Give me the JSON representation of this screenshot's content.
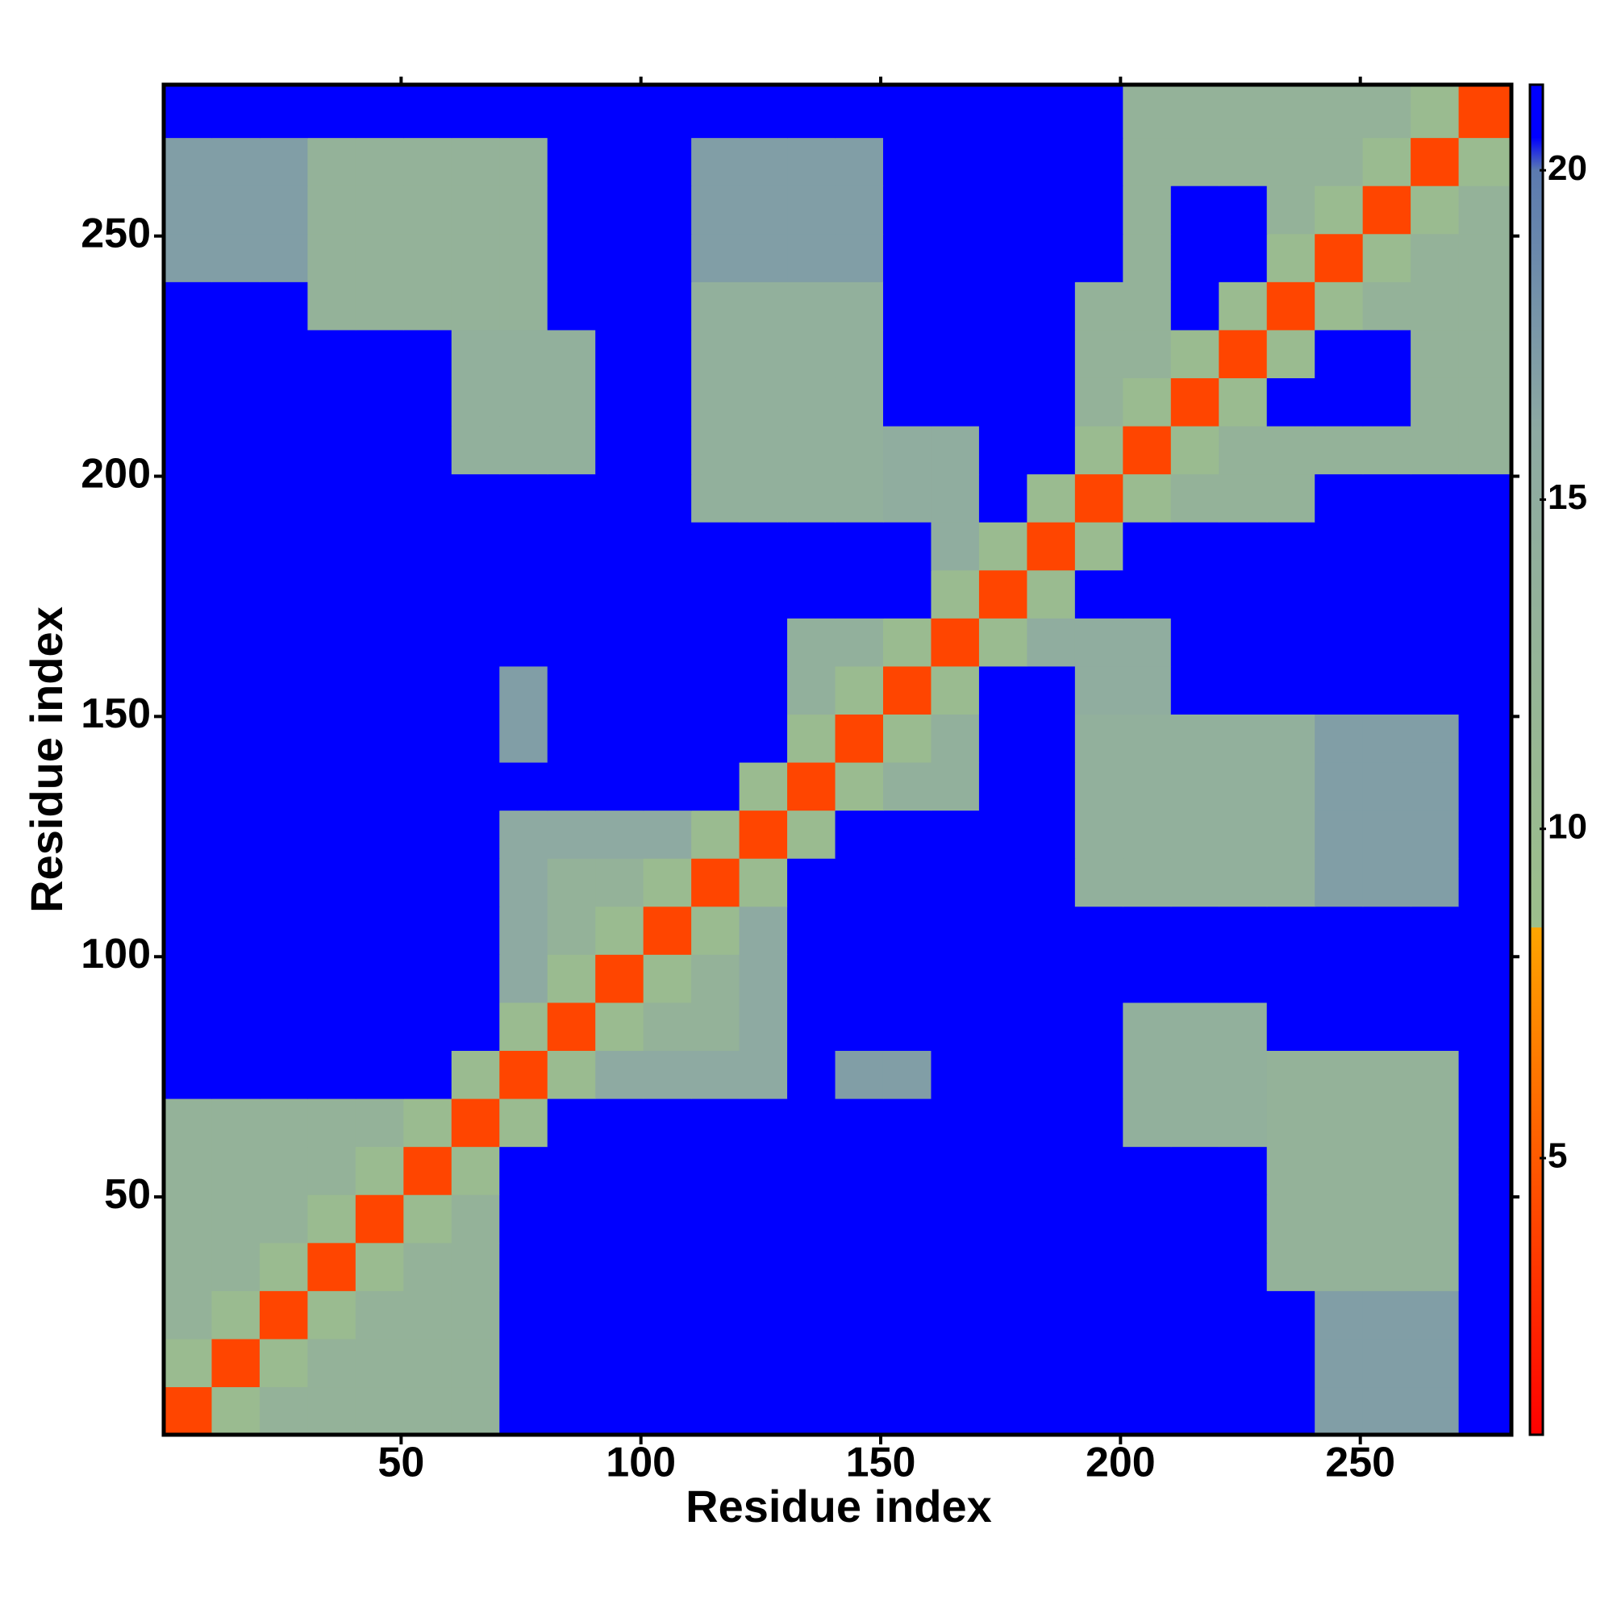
{
  "chart_data": {
    "type": "heatmap",
    "xlabel": "Residue index",
    "ylabel": "Residue index",
    "xbins": [
      0.5,
      10.5,
      20.5,
      30.5,
      40.5,
      50.5,
      60.5,
      70.5,
      80.5,
      90.5,
      100.5,
      110.5,
      120.5,
      130.5,
      140.5,
      150.5,
      160.5,
      170.5,
      180.5,
      190.5,
      200.5,
      210.5,
      220.5,
      230.5,
      240.5,
      250.5,
      260.5,
      270.5,
      281.5
    ],
    "ybins": [
      0.5,
      10.5,
      20.5,
      30.5,
      40.5,
      50.5,
      60.5,
      70.5,
      80.5,
      90.5,
      100.5,
      110.5,
      120.5,
      130.5,
      140.5,
      150.5,
      160.5,
      170.5,
      180.5,
      190.5,
      200.5,
      210.5,
      220.5,
      230.5,
      240.5,
      250.5,
      260.5,
      270.5,
      281.5
    ],
    "z": [
      [
        4,
        10,
        13,
        13,
        13,
        13,
        13,
        21,
        21,
        21,
        21,
        21,
        21,
        21,
        21,
        21,
        21,
        21,
        21,
        21,
        21,
        21,
        21,
        21,
        17,
        17,
        17,
        21
      ],
      [
        10,
        4,
        10,
        13,
        13,
        13,
        13,
        21,
        21,
        21,
        21,
        21,
        21,
        21,
        21,
        21,
        21,
        21,
        21,
        21,
        21,
        21,
        21,
        21,
        17,
        17,
        17,
        21
      ],
      [
        13,
        10,
        4,
        10,
        13,
        13,
        13,
        21,
        21,
        21,
        21,
        21,
        21,
        21,
        21,
        21,
        21,
        21,
        21,
        21,
        21,
        21,
        21,
        21,
        17,
        17,
        17,
        21
      ],
      [
        13,
        13,
        10,
        4,
        10,
        13,
        13,
        21,
        21,
        21,
        21,
        21,
        21,
        21,
        21,
        21,
        21,
        21,
        21,
        21,
        21,
        21,
        21,
        13,
        13,
        13,
        13,
        21
      ],
      [
        13,
        13,
        13,
        10,
        4,
        10,
        13,
        21,
        21,
        21,
        21,
        21,
        21,
        21,
        21,
        21,
        21,
        21,
        21,
        21,
        21,
        21,
        21,
        13,
        13,
        13,
        13,
        21
      ],
      [
        13,
        13,
        13,
        13,
        10,
        4,
        10,
        21,
        21,
        21,
        21,
        21,
        21,
        21,
        21,
        21,
        21,
        21,
        21,
        21,
        21,
        21,
        21,
        13,
        13,
        13,
        13,
        21
      ],
      [
        13,
        13,
        13,
        13,
        13,
        10,
        4,
        10,
        21,
        21,
        21,
        21,
        21,
        21,
        21,
        21,
        21,
        21,
        21,
        21,
        14,
        14,
        14,
        13,
        13,
        13,
        13,
        21
      ],
      [
        21,
        21,
        21,
        21,
        21,
        21,
        10,
        4,
        10,
        16,
        16,
        16,
        16,
        21,
        17,
        17,
        21,
        21,
        21,
        21,
        14,
        14,
        14,
        13,
        13,
        13,
        13,
        21
      ],
      [
        21,
        21,
        21,
        21,
        21,
        21,
        21,
        10,
        4,
        10,
        13,
        13,
        16,
        21,
        21,
        21,
        21,
        21,
        21,
        21,
        14,
        14,
        14,
        21,
        21,
        21,
        21,
        21
      ],
      [
        21,
        21,
        21,
        21,
        21,
        21,
        21,
        16,
        10,
        4,
        10,
        13,
        16,
        21,
        21,
        21,
        21,
        21,
        21,
        21,
        21,
        21,
        21,
        21,
        21,
        21,
        21,
        21
      ],
      [
        21,
        21,
        21,
        21,
        21,
        21,
        21,
        16,
        13,
        10,
        4,
        10,
        16,
        21,
        21,
        21,
        21,
        21,
        21,
        21,
        21,
        21,
        21,
        21,
        21,
        21,
        21,
        21
      ],
      [
        21,
        21,
        21,
        21,
        21,
        21,
        21,
        16,
        13,
        13,
        10,
        4,
        10,
        21,
        21,
        21,
        21,
        21,
        21,
        14,
        14,
        14,
        14,
        14,
        17,
        17,
        17,
        21
      ],
      [
        21,
        21,
        21,
        21,
        21,
        21,
        21,
        16,
        16,
        16,
        16,
        10,
        4,
        10,
        21,
        21,
        21,
        21,
        21,
        14,
        14,
        14,
        14,
        14,
        17,
        17,
        17,
        21
      ],
      [
        21,
        21,
        21,
        21,
        21,
        21,
        21,
        21,
        21,
        21,
        21,
        21,
        10,
        4,
        10,
        14,
        14,
        21,
        21,
        14,
        14,
        14,
        14,
        14,
        17,
        17,
        17,
        21
      ],
      [
        21,
        21,
        21,
        21,
        21,
        21,
        21,
        17,
        21,
        21,
        21,
        21,
        21,
        10,
        4,
        10,
        14,
        21,
        21,
        14,
        14,
        14,
        14,
        14,
        17,
        17,
        17,
        21
      ],
      [
        21,
        21,
        21,
        21,
        21,
        21,
        21,
        17,
        21,
        21,
        21,
        21,
        21,
        14,
        10,
        4,
        10,
        21,
        21,
        15,
        15,
        21,
        21,
        21,
        21,
        21,
        21,
        21
      ],
      [
        21,
        21,
        21,
        21,
        21,
        21,
        21,
        21,
        21,
        21,
        21,
        21,
        21,
        14,
        14,
        10,
        4,
        10,
        15,
        15,
        15,
        21,
        21,
        21,
        21,
        21,
        21,
        21
      ],
      [
        21,
        21,
        21,
        21,
        21,
        21,
        21,
        21,
        21,
        21,
        21,
        21,
        21,
        21,
        21,
        21,
        10,
        4,
        10,
        21,
        21,
        21,
        21,
        21,
        21,
        21,
        21,
        21
      ],
      [
        21,
        21,
        21,
        21,
        21,
        21,
        21,
        21,
        21,
        21,
        21,
        21,
        21,
        21,
        21,
        21,
        15,
        10,
        4,
        10,
        21,
        21,
        21,
        21,
        21,
        21,
        21,
        21
      ],
      [
        21,
        21,
        21,
        21,
        21,
        21,
        21,
        21,
        21,
        21,
        21,
        14,
        14,
        14,
        14,
        15,
        15,
        21,
        10,
        4,
        10,
        13,
        13,
        13,
        21,
        21,
        21,
        21
      ],
      [
        21,
        21,
        21,
        21,
        21,
        21,
        14,
        14,
        14,
        21,
        21,
        14,
        14,
        14,
        14,
        15,
        15,
        21,
        21,
        10,
        4,
        10,
        13,
        13,
        13,
        13,
        13,
        13
      ],
      [
        21,
        21,
        21,
        21,
        21,
        21,
        14,
        14,
        14,
        21,
        21,
        14,
        14,
        14,
        14,
        21,
        21,
        21,
        21,
        13,
        10,
        4,
        10,
        21,
        21,
        21,
        13,
        13
      ],
      [
        21,
        21,
        21,
        21,
        21,
        21,
        14,
        14,
        14,
        21,
        21,
        14,
        14,
        14,
        14,
        21,
        21,
        21,
        21,
        13,
        13,
        10,
        4,
        10,
        21,
        21,
        13,
        13
      ],
      [
        21,
        21,
        21,
        13,
        13,
        13,
        13,
        13,
        21,
        21,
        21,
        14,
        14,
        14,
        14,
        21,
        21,
        21,
        21,
        13,
        13,
        21,
        10,
        4,
        10,
        13,
        13,
        13
      ],
      [
        17,
        17,
        17,
        13,
        13,
        13,
        13,
        13,
        21,
        21,
        21,
        17,
        17,
        17,
        17,
        21,
        21,
        21,
        21,
        21,
        13,
        21,
        21,
        10,
        4,
        10,
        13,
        13
      ],
      [
        17,
        17,
        17,
        13,
        13,
        13,
        13,
        13,
        21,
        21,
        21,
        17,
        17,
        17,
        17,
        21,
        21,
        21,
        21,
        21,
        13,
        21,
        21,
        13,
        10,
        4,
        10,
        13
      ],
      [
        17,
        17,
        17,
        13,
        13,
        13,
        13,
        13,
        21,
        21,
        21,
        17,
        17,
        17,
        17,
        21,
        21,
        21,
        21,
        21,
        13,
        13,
        13,
        13,
        13,
        10,
        4,
        10
      ],
      [
        21,
        21,
        21,
        21,
        21,
        21,
        21,
        21,
        21,
        21,
        21,
        21,
        21,
        21,
        21,
        21,
        21,
        21,
        21,
        21,
        13,
        13,
        13,
        13,
        13,
        13,
        10,
        4
      ]
    ],
    "xlim": [
      0.5,
      281.5
    ],
    "ylim": [
      0.5,
      281.5
    ],
    "xticks": [
      50,
      100,
      150,
      200,
      250
    ],
    "yticks": [
      50,
      100,
      150,
      200,
      250
    ],
    "zlim": [
      0.8,
      21.3
    ],
    "zticks": [
      5,
      10,
      15,
      20
    ],
    "colorscale": [
      [
        0.8,
        "#ff0000"
      ],
      [
        8.5,
        "#ffa500"
      ],
      [
        8.5,
        "#9dbf8b"
      ],
      [
        16,
        "#8eaaa2"
      ],
      [
        20,
        "#5b7ab0"
      ],
      [
        20.5,
        "#0000ff"
      ],
      [
        21.3,
        "#0000ff"
      ]
    ]
  }
}
